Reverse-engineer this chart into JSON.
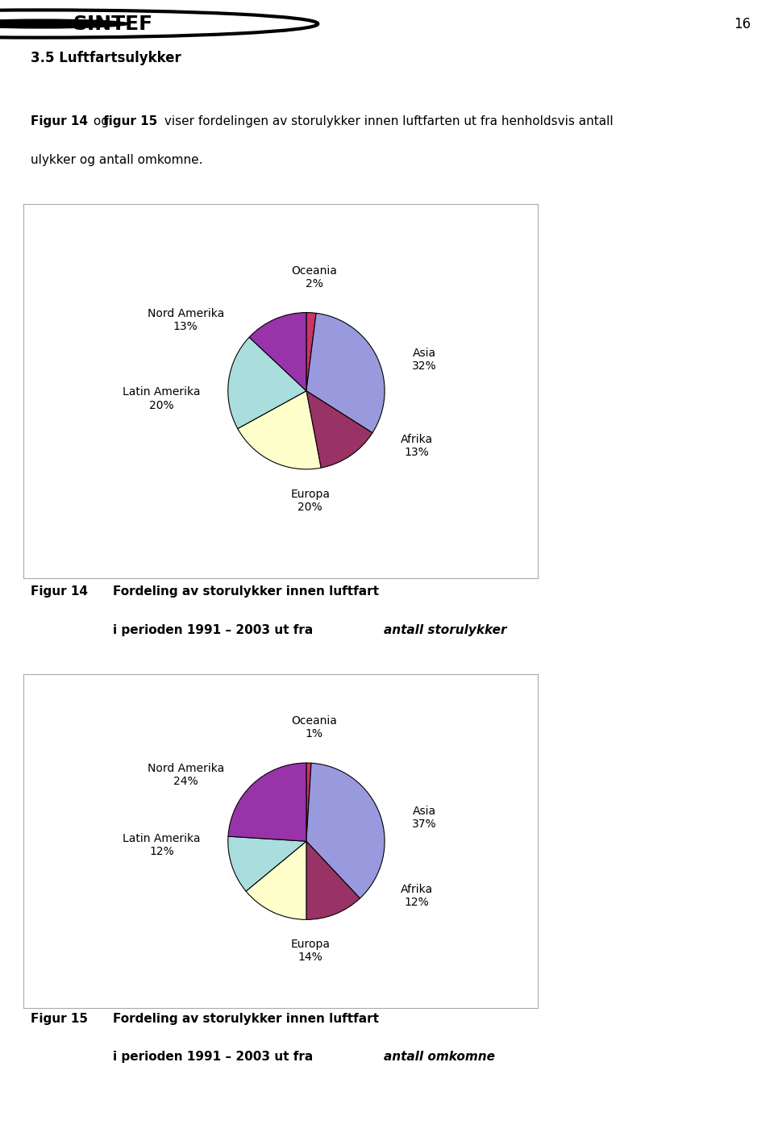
{
  "page_number": "16",
  "section_title": "3.5 Luftfartsulykker",
  "intro_bold1": "Figur 14",
  "intro_normal1": " og ",
  "intro_bold2": "figur 15",
  "intro_normal2": " viser fordelingen av storulykker innen luftfarten ut fra henholdsvis antall",
  "intro_line2": "ulykker og antall omkomne.",
  "chart1": {
    "labels": [
      "Oceania",
      "Asia",
      "Afrika",
      "Europa",
      "Latin Amerika",
      "Nord Amerika"
    ],
    "pcts": [
      "2%",
      "32%",
      "13%",
      "20%",
      "20%",
      "13%"
    ],
    "values": [
      2,
      32,
      13,
      20,
      20,
      13
    ],
    "colors": [
      "#cc3366",
      "#9999dd",
      "#993366",
      "#ffffcc",
      "#aadddd",
      "#9933aa"
    ]
  },
  "chart2": {
    "labels": [
      "Oceania",
      "Asia",
      "Afrika",
      "Europa",
      "Latin Amerika",
      "Nord Amerika"
    ],
    "pcts": [
      "1%",
      "37%",
      "12%",
      "14%",
      "12%",
      "24%"
    ],
    "values": [
      1,
      37,
      12,
      14,
      12,
      24
    ],
    "colors": [
      "#cc3366",
      "#9999dd",
      "#993366",
      "#ffffcc",
      "#aadddd",
      "#9933aa"
    ]
  },
  "caption1_num": "Figur 14",
  "caption1_line1": "Fordeling av storulykker innen luftfart",
  "caption1_line2_pre": "i perioden 1991 – 2003 ut fra ",
  "caption1_line2_italic": "antall storulykker",
  "caption2_num": "Figur 15",
  "caption2_line1": "Fordeling av storulykker innen luftfart",
  "caption2_line2_pre": "i perioden 1991 – 2003 ut fra ",
  "caption2_line2_italic": "antall omkomne",
  "bg_color": "#ffffff",
  "text_color": "#000000",
  "label_fontsize": 10,
  "caption_fontsize": 11,
  "body_fontsize": 11
}
